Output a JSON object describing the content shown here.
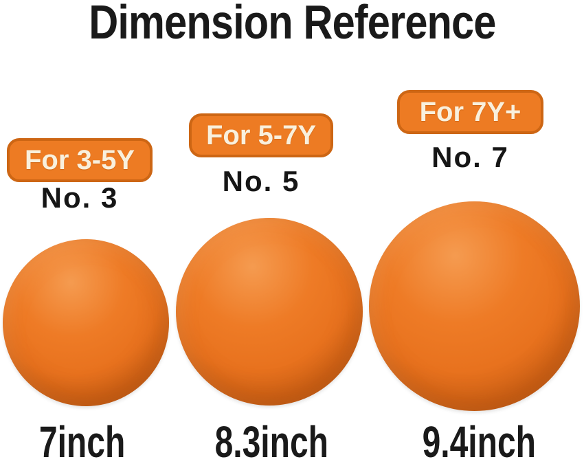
{
  "title": "Dimension Reference",
  "products": [
    {
      "badge": "For 3-5Y",
      "number": "No. 3",
      "size": "7inch",
      "ball": "orange-foam-ball-no3"
    },
    {
      "badge": "For 5-7Y",
      "number": "No. 5",
      "size": "8.3inch",
      "ball": "orange-foam-ball-no5"
    },
    {
      "badge": "For 7Y+",
      "number": "No. 7",
      "size": "9.4inch",
      "ball": "orange-foam-ball-no7"
    }
  ],
  "colors": {
    "background": "#FFFFFF",
    "text": "#1A1A1A",
    "badge_fill": "#ED7B23",
    "badge_border": "#CD6614",
    "badge_text": "#F9F0DD",
    "ball_highlight": "#F59B50",
    "ball_main": "#EE7B26",
    "ball_shadow": "#C55C12"
  }
}
